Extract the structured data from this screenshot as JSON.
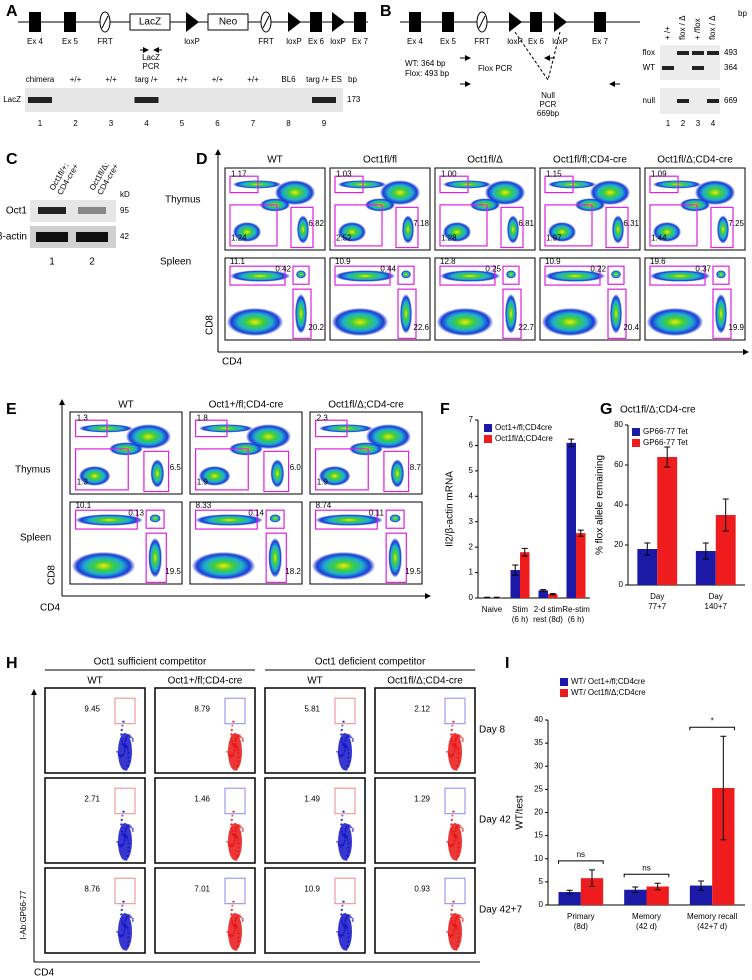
{
  "panel_labels": [
    "A",
    "B",
    "C",
    "D",
    "E",
    "F",
    "G",
    "H",
    "I"
  ],
  "panel_a": {
    "map": [
      "Ex 4",
      "Ex 5",
      "FRT",
      "LacZ",
      "loxP",
      "Neo",
      "FRT",
      "loxP",
      "Ex 6",
      "loxP",
      "Ex 7"
    ],
    "pcr": "LacZ\nPCR",
    "gel": {
      "lanes": [
        "chimera",
        "+/+",
        "+/+",
        "targ /+",
        "+/+",
        "+/+",
        "+/+",
        "BL6",
        "targ /+ ES"
      ],
      "unit": "bp",
      "band": "LacZ",
      "size": "173",
      "numbers": [
        "1",
        "2",
        "3",
        "4",
        "5",
        "6",
        "7",
        "8",
        "9"
      ]
    }
  },
  "panel_b": {
    "map": [
      "Ex 4",
      "Ex 5",
      "FRT",
      "loxP",
      "Ex 6",
      "loxP",
      "Ex 7"
    ],
    "wt": "WT: 364 bp",
    "flox": "Flox: 493 bp",
    "flox_pcr": "Flox PCR",
    "null_pcr": "Null\nPCR\n669bp",
    "gel": {
      "lanes": [
        "+ /+",
        "flox / Δ",
        "+ /flox",
        "flox / Δ"
      ],
      "unit": "bp",
      "bands": [
        "flox",
        "WT",
        "null"
      ],
      "sizes": [
        "493",
        "364",
        "669"
      ],
      "numbers": [
        "1",
        "2",
        "3",
        "4"
      ]
    }
  },
  "panel_c": {
    "lanes": [
      "Oct1fl/+;\nCD4-cre+",
      "Oct1fl/Δ;\nCD4-cre+"
    ],
    "unit": "kD",
    "bands": [
      "Oct1",
      "β-actin"
    ],
    "sizes": [
      "95",
      "42"
    ],
    "numbers": [
      "1",
      "2"
    ]
  },
  "panel_d": {
    "columns": [
      "WT",
      "Oct1fl/fl",
      "Oct1fl/Δ",
      "Oct1fl/fl;CD4-cre",
      "Oct1fl/Δ;CD4-cre"
    ],
    "rows": [
      "Thymus",
      "Spleen"
    ],
    "gates": [
      [
        [
          "1.17",
          "1.24",
          "6.82"
        ],
        [
          "1.03",
          "2.52",
          "7.18"
        ],
        [
          "1.00",
          "1.28",
          "6.81"
        ],
        [
          "1.15",
          "1.97",
          "6.31"
        ],
        [
          "1.09",
          "1.44",
          "7.25"
        ]
      ],
      [
        [
          "11.1",
          "0.42",
          "20.2"
        ],
        [
          "10.9",
          "0.44",
          "22.6"
        ],
        [
          "12.8",
          "0.25",
          "22.7"
        ],
        [
          "10.9",
          "0.22",
          "20.4"
        ],
        [
          "19.6",
          "0.37",
          "19.9"
        ]
      ]
    ],
    "y_axis": "CD8",
    "x_axis": "CD4"
  },
  "panel_e": {
    "columns": [
      "WT",
      "Oct1+/fl;CD4-cre",
      "Oct1fl/Δ;CD4-cre"
    ],
    "rows": [
      "Thymus",
      "Spleen"
    ],
    "gates": [
      [
        [
          "1.3",
          "1.3",
          "6.5"
        ],
        [
          "1.8",
          "1.9",
          "6.0"
        ],
        [
          "2.3",
          "1.9",
          "8.7"
        ]
      ],
      [
        [
          "10.1",
          "0.13",
          "19.5"
        ],
        [
          "8.33",
          "0.14",
          "18.2"
        ],
        [
          "8.74",
          "0.11",
          "19.5"
        ]
      ]
    ],
    "y_axis": "CD8",
    "x_axis": "CD4"
  },
  "panel_h": {
    "groups": [
      "Oct1 sufficient competitor",
      "Oct1 deficient competitor"
    ],
    "columns": [
      "WT",
      "Oct1+/fl;CD4-cre",
      "WT",
      "Oct1fl/Δ;CD4-cre"
    ],
    "colors": [
      "#1414c8",
      "#e81414",
      "#1414c8",
      "#e81414"
    ],
    "rows": [
      "Day 8",
      "Day 42",
      "Day 42+7"
    ],
    "gates": [
      [
        "9.45",
        "8.79",
        "5.81",
        "2.12"
      ],
      [
        "2.71",
        "1.46",
        "1.49",
        "1.29"
      ],
      [
        "8.76",
        "7.01",
        "10.9",
        "0.93"
      ]
    ],
    "y_axis": "I-Ab:GP66-77",
    "x_axis": "CD4"
  },
  "chart_data": [
    {
      "type": "bar",
      "y_label": "Il2/β-actin mRNA",
      "categories": [
        "Naive",
        "Stim\n(6 h)",
        "2-d stim\nrest (8d)",
        "Re-stim\n(6 h)"
      ],
      "series": [
        {
          "name": "Oct1+/fl;CD4cre",
          "color": "#1a1aa6",
          "values": [
            0.02,
            1.1,
            0.3,
            6.1
          ],
          "errors": [
            0.01,
            0.2,
            0.03,
            0.15
          ]
        },
        {
          "name": "Oct1fl/Δ;CD4cre",
          "color": "#ee1c1c",
          "values": [
            0.02,
            1.8,
            0.15,
            2.55
          ],
          "errors": [
            0.01,
            0.15,
            0.02,
            0.12
          ]
        }
      ],
      "ylim": [
        0,
        7
      ],
      "yticks": [
        0,
        1,
        2,
        3,
        4,
        5,
        6,
        7
      ]
    },
    {
      "type": "bar",
      "title": "Oct1fl/Δ;CD4-cre",
      "y_label": "% flox allele remaining",
      "categories": [
        "Day\n77+7",
        "Day\n140+7"
      ],
      "series": [
        {
          "name": "GP66-77 Tet",
          "color": "#1a1aa6",
          "values": [
            18,
            17
          ],
          "errors": [
            3,
            4
          ]
        },
        {
          "name": "GP66-77 Tet",
          "color": "#ee1c1c",
          "values": [
            64,
            35
          ],
          "errors": [
            5,
            8
          ]
        }
      ],
      "ylim": [
        0,
        80
      ],
      "yticks": [
        0,
        20,
        40,
        60,
        80
      ]
    },
    {
      "type": "bar",
      "y_label": "WT/test",
      "categories": [
        "Primary\n(8d)",
        "Memory\n(42 d)",
        "Memory recall\n(42+7 d)"
      ],
      "series": [
        {
          "name": "WT/ Oct1+/fl;CD4cre",
          "color": "#1a1aa6",
          "values": [
            2.8,
            3.3,
            4.2
          ],
          "errors": [
            0.4,
            0.6,
            1.0
          ]
        },
        {
          "name": "WT/ Oct1fl/Δ;CD4cre",
          "color": "#ee1c1c",
          "values": [
            5.8,
            4.0,
            25.3
          ],
          "errors": [
            1.8,
            0.7,
            11.2
          ]
        }
      ],
      "annotations": [
        "ns",
        "ns",
        "*"
      ],
      "ylim": [
        0,
        40
      ],
      "yticks": [
        0,
        5,
        10,
        15,
        20,
        25,
        30,
        35,
        40
      ]
    }
  ]
}
